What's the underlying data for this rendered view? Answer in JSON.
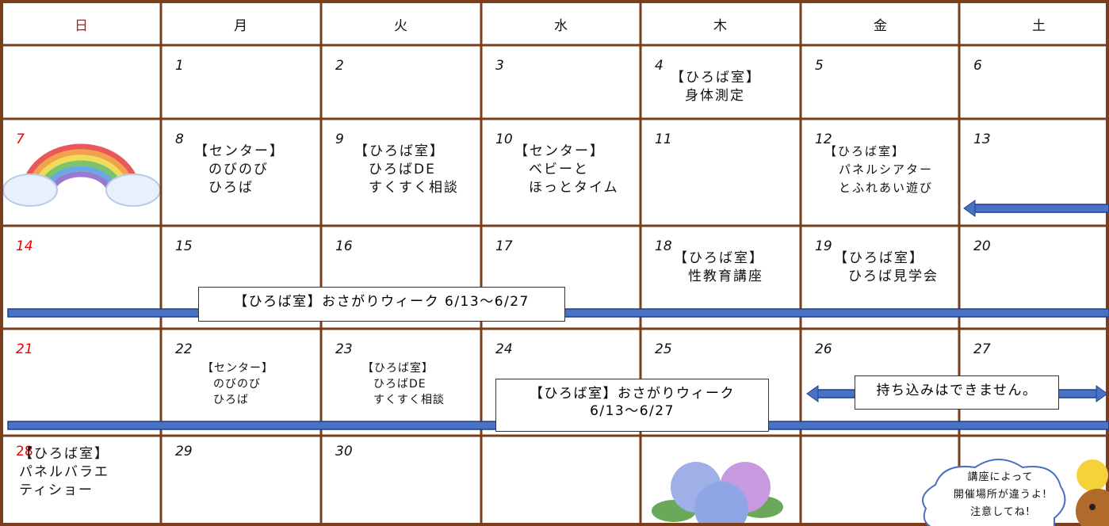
{
  "weekdays": [
    "日",
    "月",
    "火",
    "水",
    "木",
    "金",
    "土"
  ],
  "weeks": [
    {
      "cells": [
        null,
        {
          "day": 1
        },
        {
          "day": 2
        },
        {
          "day": 3
        },
        {
          "day": 4,
          "event": [
            "【ひろば室】",
            "身体測定"
          ]
        },
        {
          "day": 5
        },
        {
          "day": 6
        }
      ]
    },
    {
      "cells": [
        {
          "day": 7
        },
        {
          "day": 8,
          "event": [
            "【センター】",
            "のびのび",
            "ひろば"
          ]
        },
        {
          "day": 9,
          "event": [
            "【ひろば室】",
            "ひろばDE",
            "すくすく相談"
          ]
        },
        {
          "day": 10,
          "event": [
            "【センター】",
            "ベビーと",
            "ほっとタイム"
          ]
        },
        {
          "day": 11
        },
        {
          "day": 12,
          "event": [
            "【ひろば室】",
            "パネルシアター",
            "とふれあい遊び"
          ]
        },
        {
          "day": 13
        }
      ]
    },
    {
      "cells": [
        {
          "day": 14
        },
        {
          "day": 15
        },
        {
          "day": 16
        },
        {
          "day": 17
        },
        {
          "day": 18,
          "event": [
            "【ひろば室】",
            "性教育講座"
          ]
        },
        {
          "day": 19,
          "event": [
            "【ひろば室】",
            "ひろば見学会"
          ]
        },
        {
          "day": 20
        }
      ]
    },
    {
      "cells": [
        {
          "day": 21
        },
        {
          "day": 22,
          "event": [
            "【センター】",
            "のびのび",
            "ひろば"
          ]
        },
        {
          "day": 23,
          "event": [
            "【ひろば室】",
            "ひろばDE",
            "すくすく相談"
          ]
        },
        {
          "day": 24
        },
        {
          "day": 25
        },
        {
          "day": 26
        },
        {
          "day": 27
        }
      ]
    },
    {
      "cells": [
        {
          "day": 28,
          "event": [
            "【ひろば室】",
            "パネルバラエ",
            "ティショー"
          ]
        },
        {
          "day": 29
        },
        {
          "day": 30
        },
        null,
        null,
        null,
        null
      ]
    }
  ],
  "notices": [
    {
      "text": [
        "【ひろば室】おさがりウィーク 6/13〜6/27"
      ]
    },
    {
      "text": [
        "【ひろば室】おさがりウィーク",
        "6/13〜6/27"
      ]
    },
    {
      "text": [
        "持ち込みはできません。"
      ]
    }
  ],
  "callout": {
    "text": [
      "講座によって",
      "開催場所が違うよ!",
      "注意してね!"
    ]
  }
}
